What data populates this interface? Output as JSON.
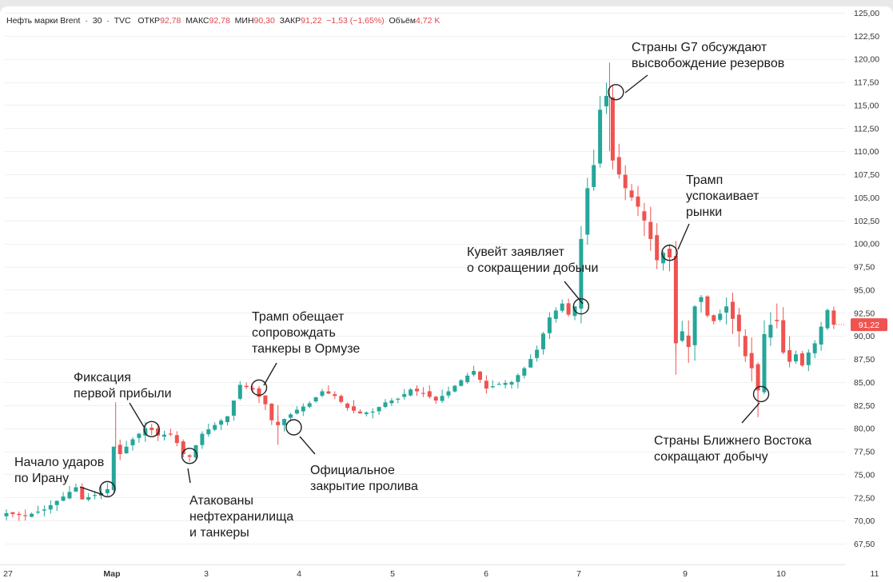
{
  "header": {
    "symbol": "Нефть марки Brent",
    "interval": "30",
    "source": "TVC",
    "open_label": "ОТКР",
    "open_value": "92,78",
    "high_label": "МАКС",
    "high_value": "92,78",
    "low_label": "МИН",
    "low_value": "90,30",
    "close_label": "ЗАКР",
    "close_value": "91,22",
    "change": "−1,53 (−1,65%)",
    "volume_label": "Объём",
    "volume_value": "4,72 K"
  },
  "colors": {
    "up": "#26a69a",
    "down": "#ef5350",
    "price_tag": "#ef5350",
    "grid": "#f0f0f0"
  },
  "chart_data": {
    "type": "candlestick",
    "title": "Нефть марки Brent · 30 · TVC",
    "ylim": [
      66.0,
      125.5
    ],
    "yticks": [
      "67,50",
      "70,00",
      "72,50",
      "75,00",
      "77,50",
      "80,00",
      "82,50",
      "85,00",
      "87,50",
      "90,00",
      "92,50",
      "95,00",
      "97,50",
      "100,00",
      "102,50",
      "105,00",
      "107,50",
      "110,00",
      "112,50",
      "115,00",
      "117,50",
      "120,00",
      "122,50",
      "125,00"
    ],
    "ytick_values": [
      67.5,
      70,
      72.5,
      75,
      77.5,
      80,
      82.5,
      85,
      87.5,
      90,
      92.5,
      95,
      97.5,
      100,
      102.5,
      105,
      107.5,
      110,
      112.5,
      115,
      117.5,
      120,
      122.5,
      125
    ],
    "xticks": [
      "27",
      "Мар",
      "3",
      "4",
      "5",
      "6",
      "7",
      "9",
      "10",
      "11"
    ],
    "last_price": 91.22,
    "last_price_label": "91,22",
    "price_path": [
      [
        0,
        70.8
      ],
      [
        3,
        70.5
      ],
      [
        6,
        71.2
      ],
      [
        9,
        72.6
      ],
      [
        11,
        73.6
      ],
      [
        12,
        72.3
      ],
      [
        15,
        73.0
      ],
      [
        16,
        73.4
      ],
      [
        17,
        78.0
      ],
      [
        17.3,
        80.8
      ],
      [
        18,
        77.2
      ],
      [
        20,
        78.8
      ],
      [
        22,
        80.0
      ],
      [
        23,
        79.8
      ],
      [
        24,
        79.2
      ],
      [
        26,
        79.4
      ],
      [
        27,
        78.4
      ],
      [
        28,
        77.2
      ],
      [
        29,
        76.9
      ],
      [
        31,
        79.4
      ],
      [
        35,
        81.3
      ],
      [
        37,
        84.7
      ],
      [
        39,
        84.2
      ],
      [
        41,
        82.6
      ],
      [
        42.5,
        80.0
      ],
      [
        44,
        81.0
      ],
      [
        46,
        82.0
      ],
      [
        48,
        82.7
      ],
      [
        50,
        84.0
      ],
      [
        52,
        83.5
      ],
      [
        54,
        82.2
      ],
      [
        56,
        81.6
      ],
      [
        58,
        81.8
      ],
      [
        60,
        82.8
      ],
      [
        62,
        83.2
      ],
      [
        64,
        84.2
      ],
      [
        66,
        83.8
      ],
      [
        68,
        83.0
      ],
      [
        70,
        84.0
      ],
      [
        72,
        85.2
      ],
      [
        74,
        86.2
      ],
      [
        76,
        84.3
      ],
      [
        78,
        84.8
      ],
      [
        80,
        85.0
      ],
      [
        82,
        86.5
      ],
      [
        84,
        88.5
      ],
      [
        86,
        92.0
      ],
      [
        88,
        93.5
      ],
      [
        89,
        92.3
      ],
      [
        90,
        93.2
      ],
      [
        91,
        100.5
      ],
      [
        92,
        106.0
      ],
      [
        93,
        108.5
      ],
      [
        94,
        114.5
      ],
      [
        95,
        116.0
      ],
      [
        95.5,
        117.8
      ],
      [
        96,
        109.0
      ],
      [
        97,
        107.5
      ],
      [
        98,
        106.0
      ],
      [
        100,
        104.0
      ],
      [
        101,
        102.5
      ],
      [
        102,
        100.5
      ],
      [
        103,
        98.2
      ],
      [
        104,
        99.0
      ],
      [
        105,
        98.5
      ],
      [
        105.5,
        91.0
      ],
      [
        106,
        89.2
      ],
      [
        107,
        90.5
      ],
      [
        108,
        88.8
      ],
      [
        109,
        93.2
      ],
      [
        110,
        94.2
      ],
      [
        111,
        92.2
      ],
      [
        112,
        91.6
      ],
      [
        114,
        93.2
      ],
      [
        116,
        90.5
      ],
      [
        117,
        87.8
      ],
      [
        118,
        86.5
      ],
      [
        119,
        84.1
      ],
      [
        120,
        90.2
      ],
      [
        121,
        91.2
      ],
      [
        122,
        91.6
      ],
      [
        123,
        88.2
      ],
      [
        124,
        87.2
      ],
      [
        125,
        88.0
      ],
      [
        126,
        86.8
      ],
      [
        127,
        88.2
      ],
      [
        128,
        89.2
      ],
      [
        129,
        91.0
      ],
      [
        130,
        92.8
      ],
      [
        131,
        91.22
      ]
    ],
    "annotations": [
      {
        "text": "Начало ударов\nпо Ирану",
        "at": [
          16,
          73.4
        ]
      },
      {
        "text": "Фиксация\nпервой прибыли",
        "at": [
          23,
          79.9
        ]
      },
      {
        "text": "Атакованы\nнефтехранилища\nи танкеры",
        "at": [
          29,
          77.0
        ]
      },
      {
        "text": "Трамп обещает\nсопровождать\nтанкеры в Ормузе",
        "at": [
          40,
          84.4
        ]
      },
      {
        "text": "Официальное\nзакрытие пролива",
        "at": [
          45.5,
          80.1
        ]
      },
      {
        "text": "Кувейт заявляет\nо сокращении добычи",
        "at": [
          91,
          93.2
        ]
      },
      {
        "text": "Страны G7 обсуждают\nвысвобождение резервов",
        "at": [
          96.5,
          116.4
        ]
      },
      {
        "text": "Трамп\nуспокаивает\nрынки",
        "at": [
          105,
          99.0
        ]
      },
      {
        "text": "Страны Ближнего Востока\nсокращают добычу",
        "at": [
          119.5,
          83.7
        ]
      }
    ]
  }
}
